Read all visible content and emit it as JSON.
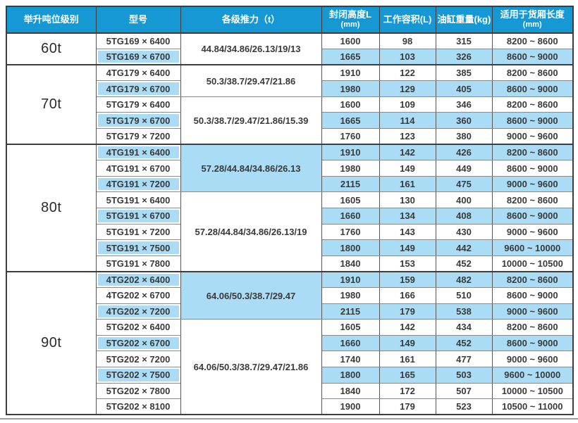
{
  "colors": {
    "header_bg": "#1598d4",
    "row_highlight": "#aadcf5",
    "border_dark": "#3d3d3d",
    "accent_line": "#9b9b9b"
  },
  "table": {
    "columns": [
      {
        "label": "举升吨位级别"
      },
      {
        "label": "型号"
      },
      {
        "label": "各级推力（t）"
      },
      {
        "label": "封闭高度L",
        "sub": "(mm)"
      },
      {
        "label": "工作容积(L)"
      },
      {
        "label": "油缸重量(kg)"
      },
      {
        "label": "适用于货厢长度",
        "sub": "(mm)"
      }
    ],
    "sections": [
      {
        "tonnage": "60t",
        "groups": [
          {
            "thrust": "44.84/34.86/26.13/19/13",
            "highlight": false,
            "rows": [
              {
                "model": "5TG169 × 6400",
                "closed_height": "1600",
                "working_volume": "98",
                "cylinder_weight": "315",
                "box_length": "8200 ~ 8600",
                "bg": "white"
              },
              {
                "model": "5TG169 × 6700",
                "closed_height": "1665",
                "working_volume": "103",
                "cylinder_weight": "326",
                "box_length": "8600 ~ 9000",
                "bg": "blue"
              }
            ]
          }
        ]
      },
      {
        "tonnage": "70t",
        "groups": [
          {
            "thrust": "50.3/38.7/29.47/21.86",
            "highlight": false,
            "rows": [
              {
                "model": "4TG179 × 6400",
                "closed_height": "1910",
                "working_volume": "122",
                "cylinder_weight": "385",
                "box_length": "8200 ~ 8600",
                "bg": "white"
              },
              {
                "model": "4TG179 × 6700",
                "closed_height": "1980",
                "working_volume": "129",
                "cylinder_weight": "405",
                "box_length": "8600 ~ 9000",
                "bg": "blue"
              }
            ]
          },
          {
            "thrust": "50.3/38.7/29.47/21.86/15.39",
            "highlight": false,
            "rows": [
              {
                "model": "5TG179 × 6400",
                "closed_height": "1600",
                "working_volume": "109",
                "cylinder_weight": "346",
                "box_length": "8200 ~ 8600",
                "bg": "white"
              },
              {
                "model": "5TG179 × 6700",
                "closed_height": "1665",
                "working_volume": "114",
                "cylinder_weight": "360",
                "box_length": "8600 ~ 9000",
                "bg": "blue"
              },
              {
                "model": "5TG179 × 7200",
                "closed_height": "1760",
                "working_volume": "123",
                "cylinder_weight": "380",
                "box_length": "9000 ~ 9600",
                "bg": "white"
              }
            ]
          }
        ]
      },
      {
        "tonnage": "80t",
        "groups": [
          {
            "thrust": "57.28/44.84/34.86/26.13",
            "highlight": true,
            "rows": [
              {
                "model": "4TG191 × 6400",
                "closed_height": "1910",
                "working_volume": "142",
                "cylinder_weight": "426",
                "box_length": "8200 ~ 8600",
                "bg": "blue"
              },
              {
                "model": "4TG191 × 6700",
                "closed_height": "1980",
                "working_volume": "149",
                "cylinder_weight": "449",
                "box_length": "8600 ~ 9000",
                "bg": "white"
              },
              {
                "model": "4TG191 × 7200",
                "closed_height": "2115",
                "working_volume": "161",
                "cylinder_weight": "475",
                "box_length": "9000 ~ 9600",
                "bg": "blue"
              }
            ]
          },
          {
            "thrust": "57.28/44.84/34.86/26.13/19",
            "highlight": false,
            "rows": [
              {
                "model": "5TG191 × 6400",
                "closed_height": "1605",
                "working_volume": "130",
                "cylinder_weight": "400",
                "box_length": "8200 ~ 8600",
                "bg": "white"
              },
              {
                "model": "5TG191 × 6700",
                "closed_height": "1660",
                "working_volume": "134",
                "cylinder_weight": "408",
                "box_length": "8600 ~ 9000",
                "bg": "blue"
              },
              {
                "model": "5TG191 × 7200",
                "closed_height": "1760",
                "working_volume": "143",
                "cylinder_weight": "430",
                "box_length": "9000 ~ 9600",
                "bg": "white"
              },
              {
                "model": "5TG191 × 7500",
                "closed_height": "1800",
                "working_volume": "149",
                "cylinder_weight": "442",
                "box_length": "9600 ~ 10000",
                "bg": "blue"
              },
              {
                "model": "5TG191 × 7800",
                "closed_height": "1840",
                "working_volume": "153",
                "cylinder_weight": "452",
                "box_length": "10000 ~ 10500",
                "bg": "white"
              }
            ]
          }
        ]
      },
      {
        "tonnage": "90t",
        "groups": [
          {
            "thrust": "64.06/50.3/38.7/29.47",
            "highlight": true,
            "rows": [
              {
                "model": "4TG202 × 6400",
                "closed_height": "1910",
                "working_volume": "159",
                "cylinder_weight": "482",
                "box_length": "8200 ~ 8600",
                "bg": "blue"
              },
              {
                "model": "4TG202 × 6700",
                "closed_height": "1980",
                "working_volume": "166",
                "cylinder_weight": "510",
                "box_length": "8600 ~ 9000",
                "bg": "white"
              },
              {
                "model": "4TG202 × 7200",
                "closed_height": "2115",
                "working_volume": "179",
                "cylinder_weight": "538",
                "box_length": "9000 ~ 9600",
                "bg": "blue"
              }
            ]
          },
          {
            "thrust": "64.06/50.3/38.7/29.47/21.86",
            "highlight": false,
            "rows": [
              {
                "model": "5TG202 × 6400",
                "closed_height": "1605",
                "working_volume": "142",
                "cylinder_weight": "434",
                "box_length": "8200 ~ 8600",
                "bg": "white"
              },
              {
                "model": "5TG202 × 6700",
                "closed_height": "1660",
                "working_volume": "149",
                "cylinder_weight": "452",
                "box_length": "8600 ~ 9000",
                "bg": "blue"
              },
              {
                "model": "5TG202 × 7200",
                "closed_height": "1740",
                "working_volume": "161",
                "cylinder_weight": "477",
                "box_length": "9000 ~ 9600",
                "bg": "white"
              },
              {
                "model": "5TG202 × 7500",
                "closed_height": "1800",
                "working_volume": "165",
                "cylinder_weight": "503",
                "box_length": "9600 ~ 10000",
                "bg": "blue"
              },
              {
                "model": "5TG202 × 7800",
                "closed_height": "1840",
                "working_volume": "172",
                "cylinder_weight": "507",
                "box_length": "10000 ~ 10500",
                "bg": "white"
              },
              {
                "model": "5TG202 × 8100",
                "closed_height": "1900",
                "working_volume": "179",
                "cylinder_weight": "523",
                "box_length": "10500 ~ 11000",
                "bg": "white"
              }
            ]
          }
        ]
      }
    ]
  }
}
